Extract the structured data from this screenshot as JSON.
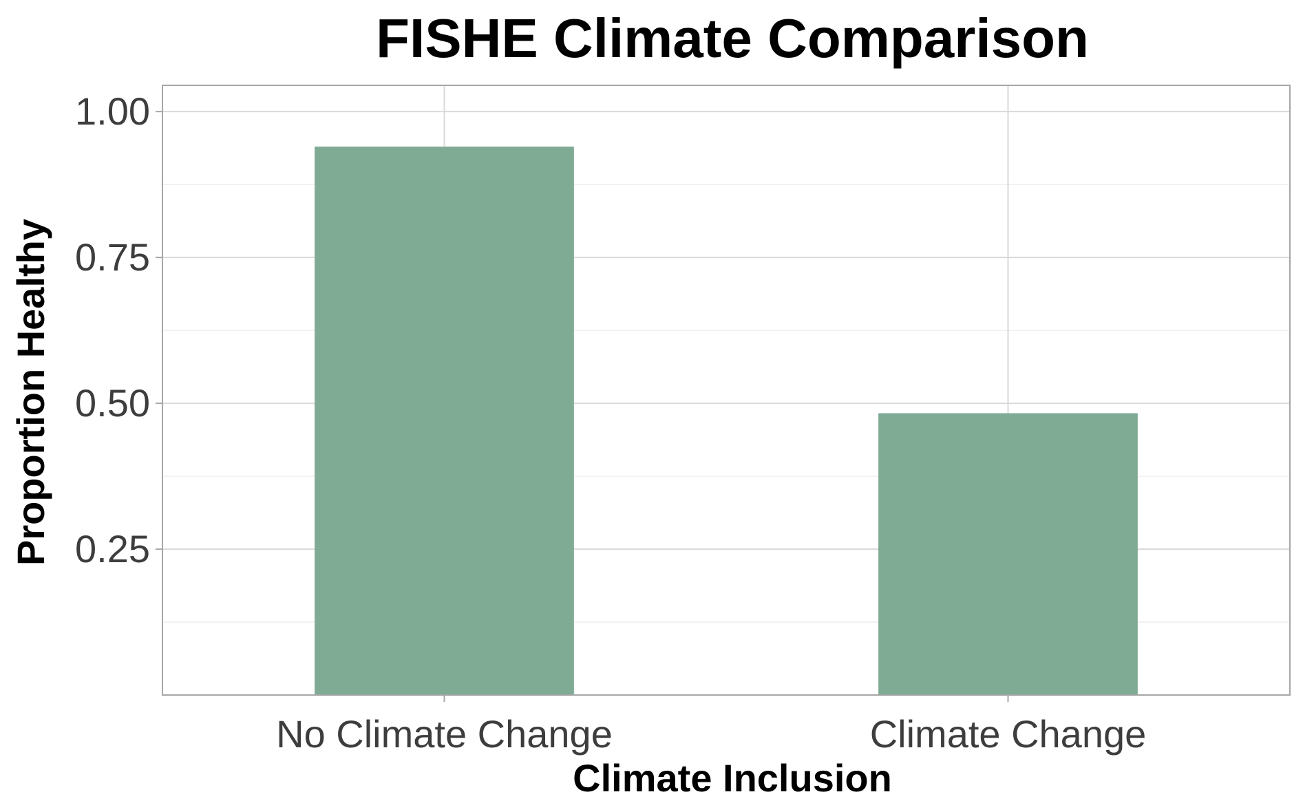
{
  "chart_data": {
    "type": "bar",
    "title": "FISHE Climate Comparison",
    "xlabel": "Climate Inclusion",
    "ylabel": "Proportion Healthy",
    "categories": [
      "No Climate Change",
      "Climate Change"
    ],
    "values": [
      0.94,
      0.483
    ],
    "ylim": [
      0.0,
      1.045
    ],
    "yticks": [
      0.25,
      0.5,
      0.75,
      1.0
    ],
    "ytick_labels": [
      "0.25",
      "0.50",
      "0.75",
      "1.00"
    ],
    "yminor_ticks": [
      0.125,
      0.375,
      0.625,
      0.875
    ],
    "grid": true,
    "legend": "none",
    "bar_color": "#7faa94"
  }
}
